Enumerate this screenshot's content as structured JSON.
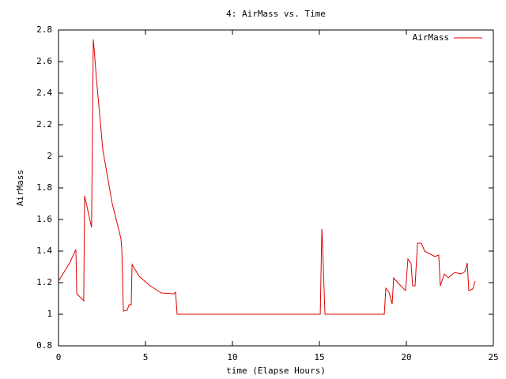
{
  "chart_data": {
    "type": "line",
    "title": "4: AirMass vs. Time",
    "x_label": "time (Elapse Hours)",
    "y_label": "AirMass",
    "x": [
      0,
      0.64,
      1.0,
      1.05,
      1.45,
      1.5,
      1.9,
      2.0,
      2.05,
      2.18,
      2.55,
      3.09,
      3.59,
      3.64,
      3.73,
      3.95,
      4.05,
      4.18,
      4.23,
      4.64,
      5.27,
      5.91,
      6.64,
      6.73,
      6.82,
      15.05,
      15.14,
      15.18,
      15.32,
      18.73,
      18.82,
      19.0,
      19.18,
      19.27,
      19.59,
      19.95,
      20.09,
      20.27,
      20.36,
      20.5,
      20.64,
      20.86,
      21.05,
      21.64,
      21.86,
      21.95,
      22.18,
      22.41,
      22.77,
      23.14,
      23.36,
      23.5,
      23.59,
      23.82,
      23.95
    ],
    "series": [
      {
        "name": "AirMass",
        "color": "#e00000",
        "values": [
          1.21,
          1.325,
          1.41,
          1.13,
          1.085,
          1.75,
          1.55,
          2.74,
          2.68,
          2.49,
          2.04,
          1.7,
          1.48,
          1.41,
          1.02,
          1.025,
          1.06,
          1.06,
          1.315,
          1.24,
          1.18,
          1.135,
          1.13,
          1.14,
          1.0,
          1.0,
          1.54,
          1.44,
          1.0,
          1.0,
          1.165,
          1.14,
          1.065,
          1.23,
          1.19,
          1.15,
          1.35,
          1.32,
          1.18,
          1.18,
          1.45,
          1.45,
          1.4,
          1.365,
          1.375,
          1.18,
          1.255,
          1.23,
          1.265,
          1.255,
          1.27,
          1.325,
          1.15,
          1.16,
          1.21
        ]
      }
    ],
    "xlim": [
      0,
      25
    ],
    "xticks": [
      0,
      5,
      10,
      15,
      20,
      25
    ],
    "ylim": [
      0.8,
      2.8
    ],
    "yticks": [
      0.8,
      1,
      1.2,
      1.4,
      1.6,
      1.8,
      2,
      2.2,
      2.4,
      2.6,
      2.8
    ],
    "grid": false,
    "legend": "top-right"
  }
}
